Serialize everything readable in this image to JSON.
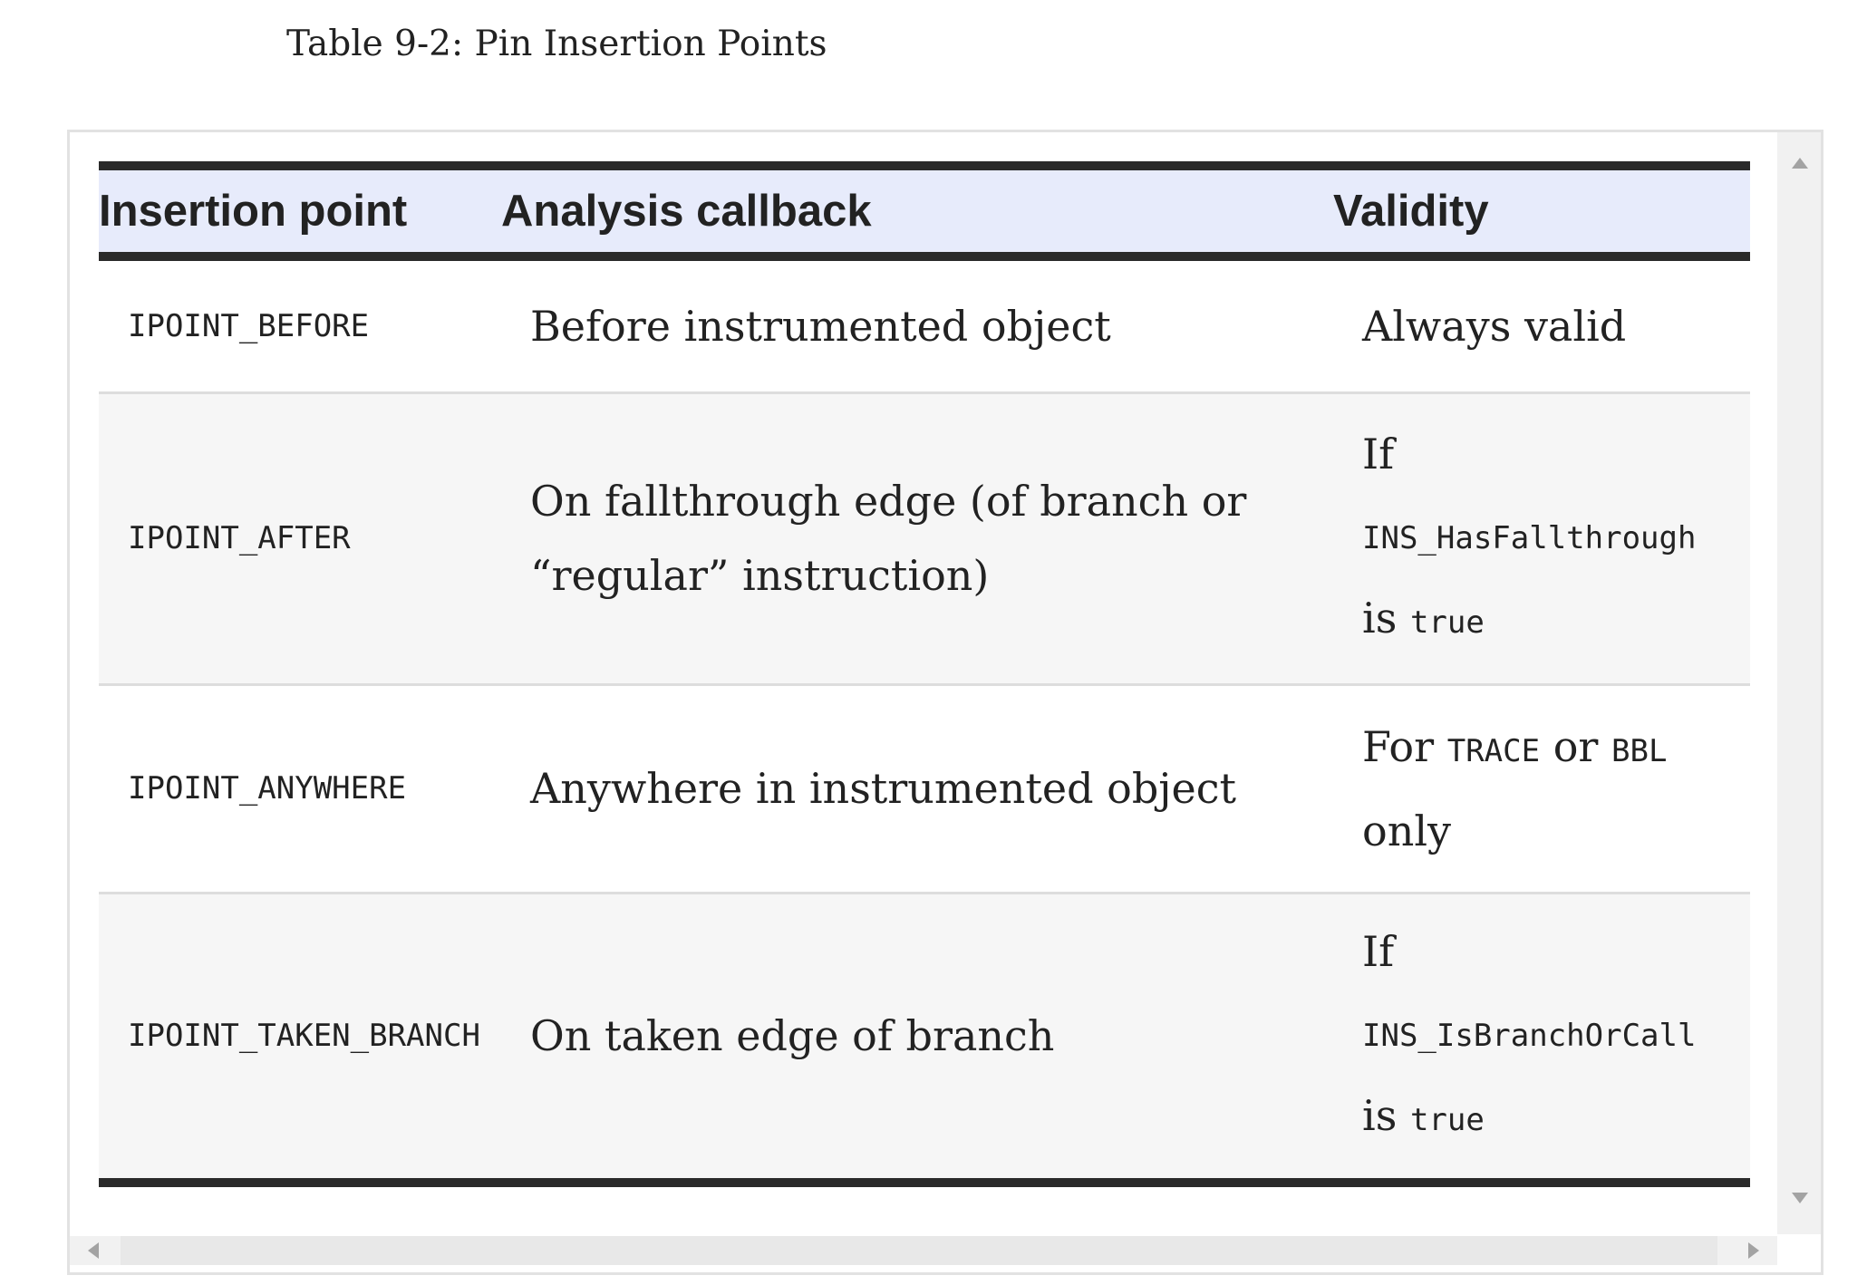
{
  "caption": "Table 9-2: Pin Insertion Points",
  "table": {
    "headers": {
      "point": "Insertion point",
      "analysis": "Analysis callback",
      "validity": "Validity"
    },
    "rows": [
      {
        "point": "IPOINT_BEFORE",
        "analysis": "Before instrumented object",
        "validity": {
          "text": "Always valid"
        }
      },
      {
        "point": "IPOINT_AFTER",
        "analysis": "On fallthrough edge (of branch or “regular” instruction)",
        "validity": {
          "prefix": "If",
          "code": "INS_HasFallthrough",
          "mid": "is",
          "code2": "true"
        }
      },
      {
        "point": "IPOINT_ANYWHERE",
        "analysis": "Anywhere in instrumented object",
        "validity": {
          "prefix": "For",
          "code": "TRACE",
          "mid": "or",
          "code2": "BBL",
          "suffix": "only"
        }
      },
      {
        "point": "IPOINT_TAKEN_BRANCH",
        "analysis": "On taken edge of branch",
        "validity": {
          "prefix": "If",
          "code": "INS_IsBranchOrCall",
          "mid": "is",
          "code2": "true"
        }
      }
    ]
  },
  "colors": {
    "header_bg": "#e7ebfb",
    "rule": "#2a2a2a",
    "row_alt": "#f6f6f6"
  },
  "icons": {
    "scroll_up": "triangle-up-icon",
    "scroll_down": "triangle-down-icon",
    "scroll_left": "triangle-left-icon",
    "scroll_right": "triangle-right-icon"
  }
}
